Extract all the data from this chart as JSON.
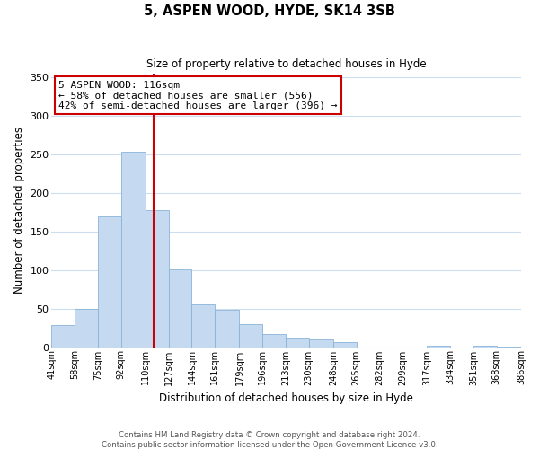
{
  "title": "5, ASPEN WOOD, HYDE, SK14 3SB",
  "subtitle": "Size of property relative to detached houses in Hyde",
  "xlabel": "Distribution of detached houses by size in Hyde",
  "ylabel": "Number of detached properties",
  "bar_color": "#c5d9f0",
  "bar_edge_color": "#8ab4d8",
  "vline_x": 116,
  "vline_color": "#cc0000",
  "annotation_title": "5 ASPEN WOOD: 116sqm",
  "annotation_line1": "← 58% of detached houses are smaller (556)",
  "annotation_line2": "42% of semi-detached houses are larger (396) →",
  "annotation_box_color": "#ffffff",
  "annotation_box_edge": "#cc0000",
  "bins": [
    41,
    58,
    75,
    92,
    110,
    127,
    144,
    161,
    179,
    196,
    213,
    230,
    248,
    265,
    282,
    299,
    317,
    334,
    351,
    368,
    386
  ],
  "counts": [
    28,
    50,
    170,
    253,
    178,
    101,
    55,
    48,
    30,
    17,
    12,
    10,
    7,
    0,
    0,
    0,
    2,
    0,
    2,
    1
  ],
  "ylim": [
    0,
    355
  ],
  "yticks": [
    0,
    50,
    100,
    150,
    200,
    250,
    300,
    350
  ],
  "footer1": "Contains HM Land Registry data © Crown copyright and database right 2024.",
  "footer2": "Contains public sector information licensed under the Open Government Licence v3.0."
}
